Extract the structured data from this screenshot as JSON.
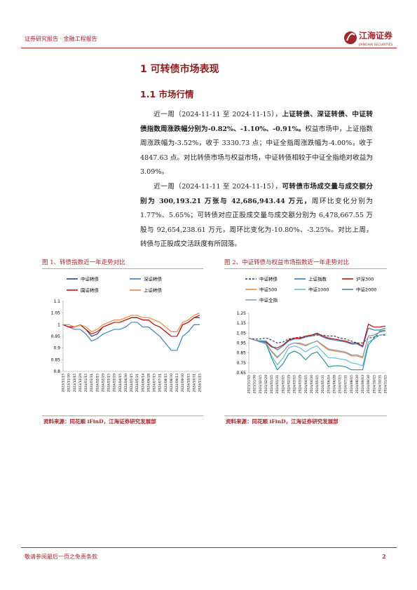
{
  "header": {
    "left": "证券研究报告 · 金融工程报告",
    "logo": "江海证券",
    "logo_en": "JIANGHAI SECURITIES"
  },
  "section_title": "1 可转债市场表现",
  "subsection_title": "1.1  市场行情",
  "paragraphs": [
    [
      {
        "text": "近一周（2024-11-11 至 2024-11-15），",
        "bold": false
      },
      {
        "text": "上证转债、深证转债、中证转债指数周涨跌幅分别为-0.82%、-1.10%、-0.91%。",
        "bold": true
      },
      {
        "text": "权益市场中，上证指数周涨跌幅为-3.52%，收于 3330.73 点；中证全指周涨跌幅为-4.00%，收于 4847.63 点。对比转债市场与权益市场，中证转债相较于中证全指绝对收益为 3.09%。",
        "bold": false
      }
    ],
    [
      {
        "text": "近一周（2024-11-11 至 2024-11-15），",
        "bold": false
      },
      {
        "text": "可转债市场成交量与成交额分别为 300,193.21 万张与 42,686,943.44 万元，",
        "bold": true
      },
      {
        "text": "周环比变化分别为 1.77%、5.65%；可转债对应正股成交量与成交额分别为 6,478,667.55 万股与 92,654,238.61 万元，周环比变化为-10.80%、-3.25%。对比上周，转债与正股成交活跃度有所回落。",
        "bold": false
      }
    ]
  ],
  "chart_data": [
    {
      "type": "line",
      "caption": "图 1、转债指数近一年走势对比",
      "source": "资料来源：同花顺 iFinD，江海证券研究发展部",
      "ylim": [
        0.8,
        1.1
      ],
      "yticks": [
        0.8,
        0.85,
        0.9,
        0.95,
        1,
        1.05,
        1.1
      ],
      "grid": false,
      "categories": [
        "2023/11/15",
        "2023/11/30",
        "2023/12/15",
        "2023/12/29",
        "2024/01/15",
        "2024/01/31",
        "2024/02/15",
        "2024/02/29",
        "2024/03/15",
        "2024/03/29",
        "2024/04/15",
        "2024/04/30",
        "2024/05/15",
        "2024/05/31",
        "2024/06/14",
        "2024/06/28",
        "2024/07/15",
        "2024/07/31",
        "2024/08/15",
        "2024/08/30",
        "2024/09/13",
        "2024/09/30",
        "2024/10/15",
        "2024/10/31",
        "2024/11/15"
      ],
      "series": [
        {
          "name": "中证转债",
          "color": "#1f3864",
          "dashed": false,
          "values": [
            1.0,
            0.99,
            0.99,
            1.0,
            0.98,
            0.95,
            0.96,
            0.99,
            1.0,
            1.01,
            1.01,
            1.02,
            1.03,
            1.03,
            1.02,
            1.02,
            1.0,
            0.99,
            0.97,
            0.95,
            0.95,
            1.0,
            1.01,
            1.03,
            1.03
          ]
        },
        {
          "name": "深证转债",
          "color": "#2e75b6",
          "dashed": false,
          "values": [
            1.0,
            0.99,
            0.98,
            0.98,
            0.96,
            0.93,
            0.94,
            0.96,
            0.97,
            0.98,
            0.98,
            0.99,
            1.01,
            1.01,
            0.99,
            0.99,
            0.97,
            0.95,
            0.92,
            0.89,
            0.89,
            0.95,
            0.97,
            1.0,
            1.0
          ]
        },
        {
          "name": "国证转债",
          "color": "#c00000",
          "dashed": false,
          "values": [
            1.0,
            0.99,
            0.99,
            1.0,
            0.98,
            0.96,
            0.97,
            0.99,
            1.0,
            1.01,
            1.01,
            1.02,
            1.03,
            1.03,
            1.02,
            1.02,
            1.0,
            0.99,
            0.97,
            0.95,
            0.95,
            1.0,
            1.01,
            1.03,
            1.04
          ]
        },
        {
          "name": "上证转债",
          "color": "#ed7d31",
          "dashed": false,
          "values": [
            1.0,
            1.0,
            0.99,
            1.0,
            0.99,
            0.97,
            0.98,
            1.0,
            1.01,
            1.02,
            1.02,
            1.03,
            1.04,
            1.04,
            1.03,
            1.03,
            1.02,
            1.01,
            0.99,
            0.97,
            0.97,
            1.01,
            1.02,
            1.04,
            1.05
          ]
        }
      ]
    },
    {
      "type": "line",
      "caption": "图 2、中证转债与权益市场指数近一年走势对比",
      "source": "资料来源：同花顺 iFinD，江海证券研究发展部",
      "ylim": [
        0.65,
        1.25
      ],
      "yticks": [
        0.65,
        0.75,
        0.85,
        0.95,
        1.05,
        1.15,
        1.25
      ],
      "grid": false,
      "categories": [
        "2023/11/15",
        "2023/11/30",
        "2023/12/15",
        "2023/12/29",
        "2024/01/15",
        "2024/01/31",
        "2024/02/15",
        "2024/02/29",
        "2024/03/15",
        "2024/03/29",
        "2024/04/15",
        "2024/04/30",
        "2024/05/15",
        "2024/05/31",
        "2024/06/14",
        "2024/06/28",
        "2024/07/15",
        "2024/07/31",
        "2024/08/15",
        "2024/08/30",
        "2024/09/13",
        "2024/09/30",
        "2024/10/15",
        "2024/10/31",
        "2024/11/15"
      ],
      "series": [
        {
          "name": "中证转债",
          "color": "#1f3864",
          "dashed": true,
          "values": [
            1.0,
            0.99,
            0.99,
            1.0,
            0.98,
            0.95,
            0.96,
            0.99,
            1.0,
            1.01,
            1.01,
            1.02,
            1.03,
            1.03,
            1.02,
            1.02,
            1.0,
            0.99,
            0.97,
            0.95,
            0.95,
            1.0,
            1.01,
            1.03,
            1.03
          ]
        },
        {
          "name": "上证指数",
          "color": "#2e75b6",
          "dashed": false,
          "values": [
            1.0,
            0.98,
            0.97,
            0.97,
            0.92,
            0.88,
            0.92,
            0.97,
            0.99,
            0.99,
            1.01,
            1.02,
            1.04,
            1.01,
            0.99,
            0.98,
            0.97,
            0.96,
            0.94,
            0.94,
            0.91,
            1.1,
            1.08,
            1.08,
            1.1
          ]
        },
        {
          "name": "沪深300",
          "color": "#c00000",
          "dashed": false,
          "values": [
            1.0,
            0.98,
            0.96,
            0.96,
            0.91,
            0.9,
            0.93,
            0.98,
            1.0,
            1.0,
            1.02,
            1.03,
            1.05,
            1.02,
            1.0,
            0.99,
            0.98,
            0.97,
            0.95,
            0.95,
            0.92,
            1.14,
            1.11,
            1.11,
            1.12
          ]
        },
        {
          "name": "中证500",
          "color": "#ed7d31",
          "dashed": false,
          "values": [
            1.0,
            0.98,
            0.96,
            0.95,
            0.86,
            0.8,
            0.86,
            0.93,
            0.95,
            0.95,
            0.93,
            0.95,
            0.97,
            0.92,
            0.88,
            0.87,
            0.86,
            0.85,
            0.82,
            0.82,
            0.8,
            1.02,
            1.03,
            1.06,
            1.07
          ]
        },
        {
          "name": "中证1000",
          "color": "#5bb5d9",
          "dashed": false,
          "values": [
            1.0,
            0.98,
            0.96,
            0.94,
            0.82,
            0.73,
            0.8,
            0.9,
            0.92,
            0.9,
            0.86,
            0.9,
            0.92,
            0.86,
            0.8,
            0.8,
            0.79,
            0.78,
            0.75,
            0.74,
            0.72,
            0.96,
            0.99,
            1.03,
            1.04
          ]
        },
        {
          "name": "中证2000",
          "color": "#1e8c8c",
          "dashed": false,
          "values": [
            1.0,
            0.98,
            0.97,
            0.95,
            0.8,
            0.68,
            0.74,
            0.84,
            0.87,
            0.84,
            0.78,
            0.84,
            0.86,
            0.79,
            0.71,
            0.72,
            0.72,
            0.71,
            0.68,
            0.68,
            0.68,
            0.93,
            1.0,
            1.07,
            1.08
          ]
        },
        {
          "name": "中证全指",
          "color": "#8497b0",
          "dashed": false,
          "values": [
            1.0,
            0.98,
            0.96,
            0.95,
            0.87,
            0.81,
            0.86,
            0.93,
            0.95,
            0.94,
            0.92,
            0.95,
            0.97,
            0.93,
            0.89,
            0.88,
            0.87,
            0.86,
            0.83,
            0.83,
            0.81,
            1.02,
            1.03,
            1.06,
            1.07
          ]
        }
      ]
    }
  ],
  "footer": {
    "left": "敬请参阅最后一页之免责条款",
    "page": "2"
  }
}
